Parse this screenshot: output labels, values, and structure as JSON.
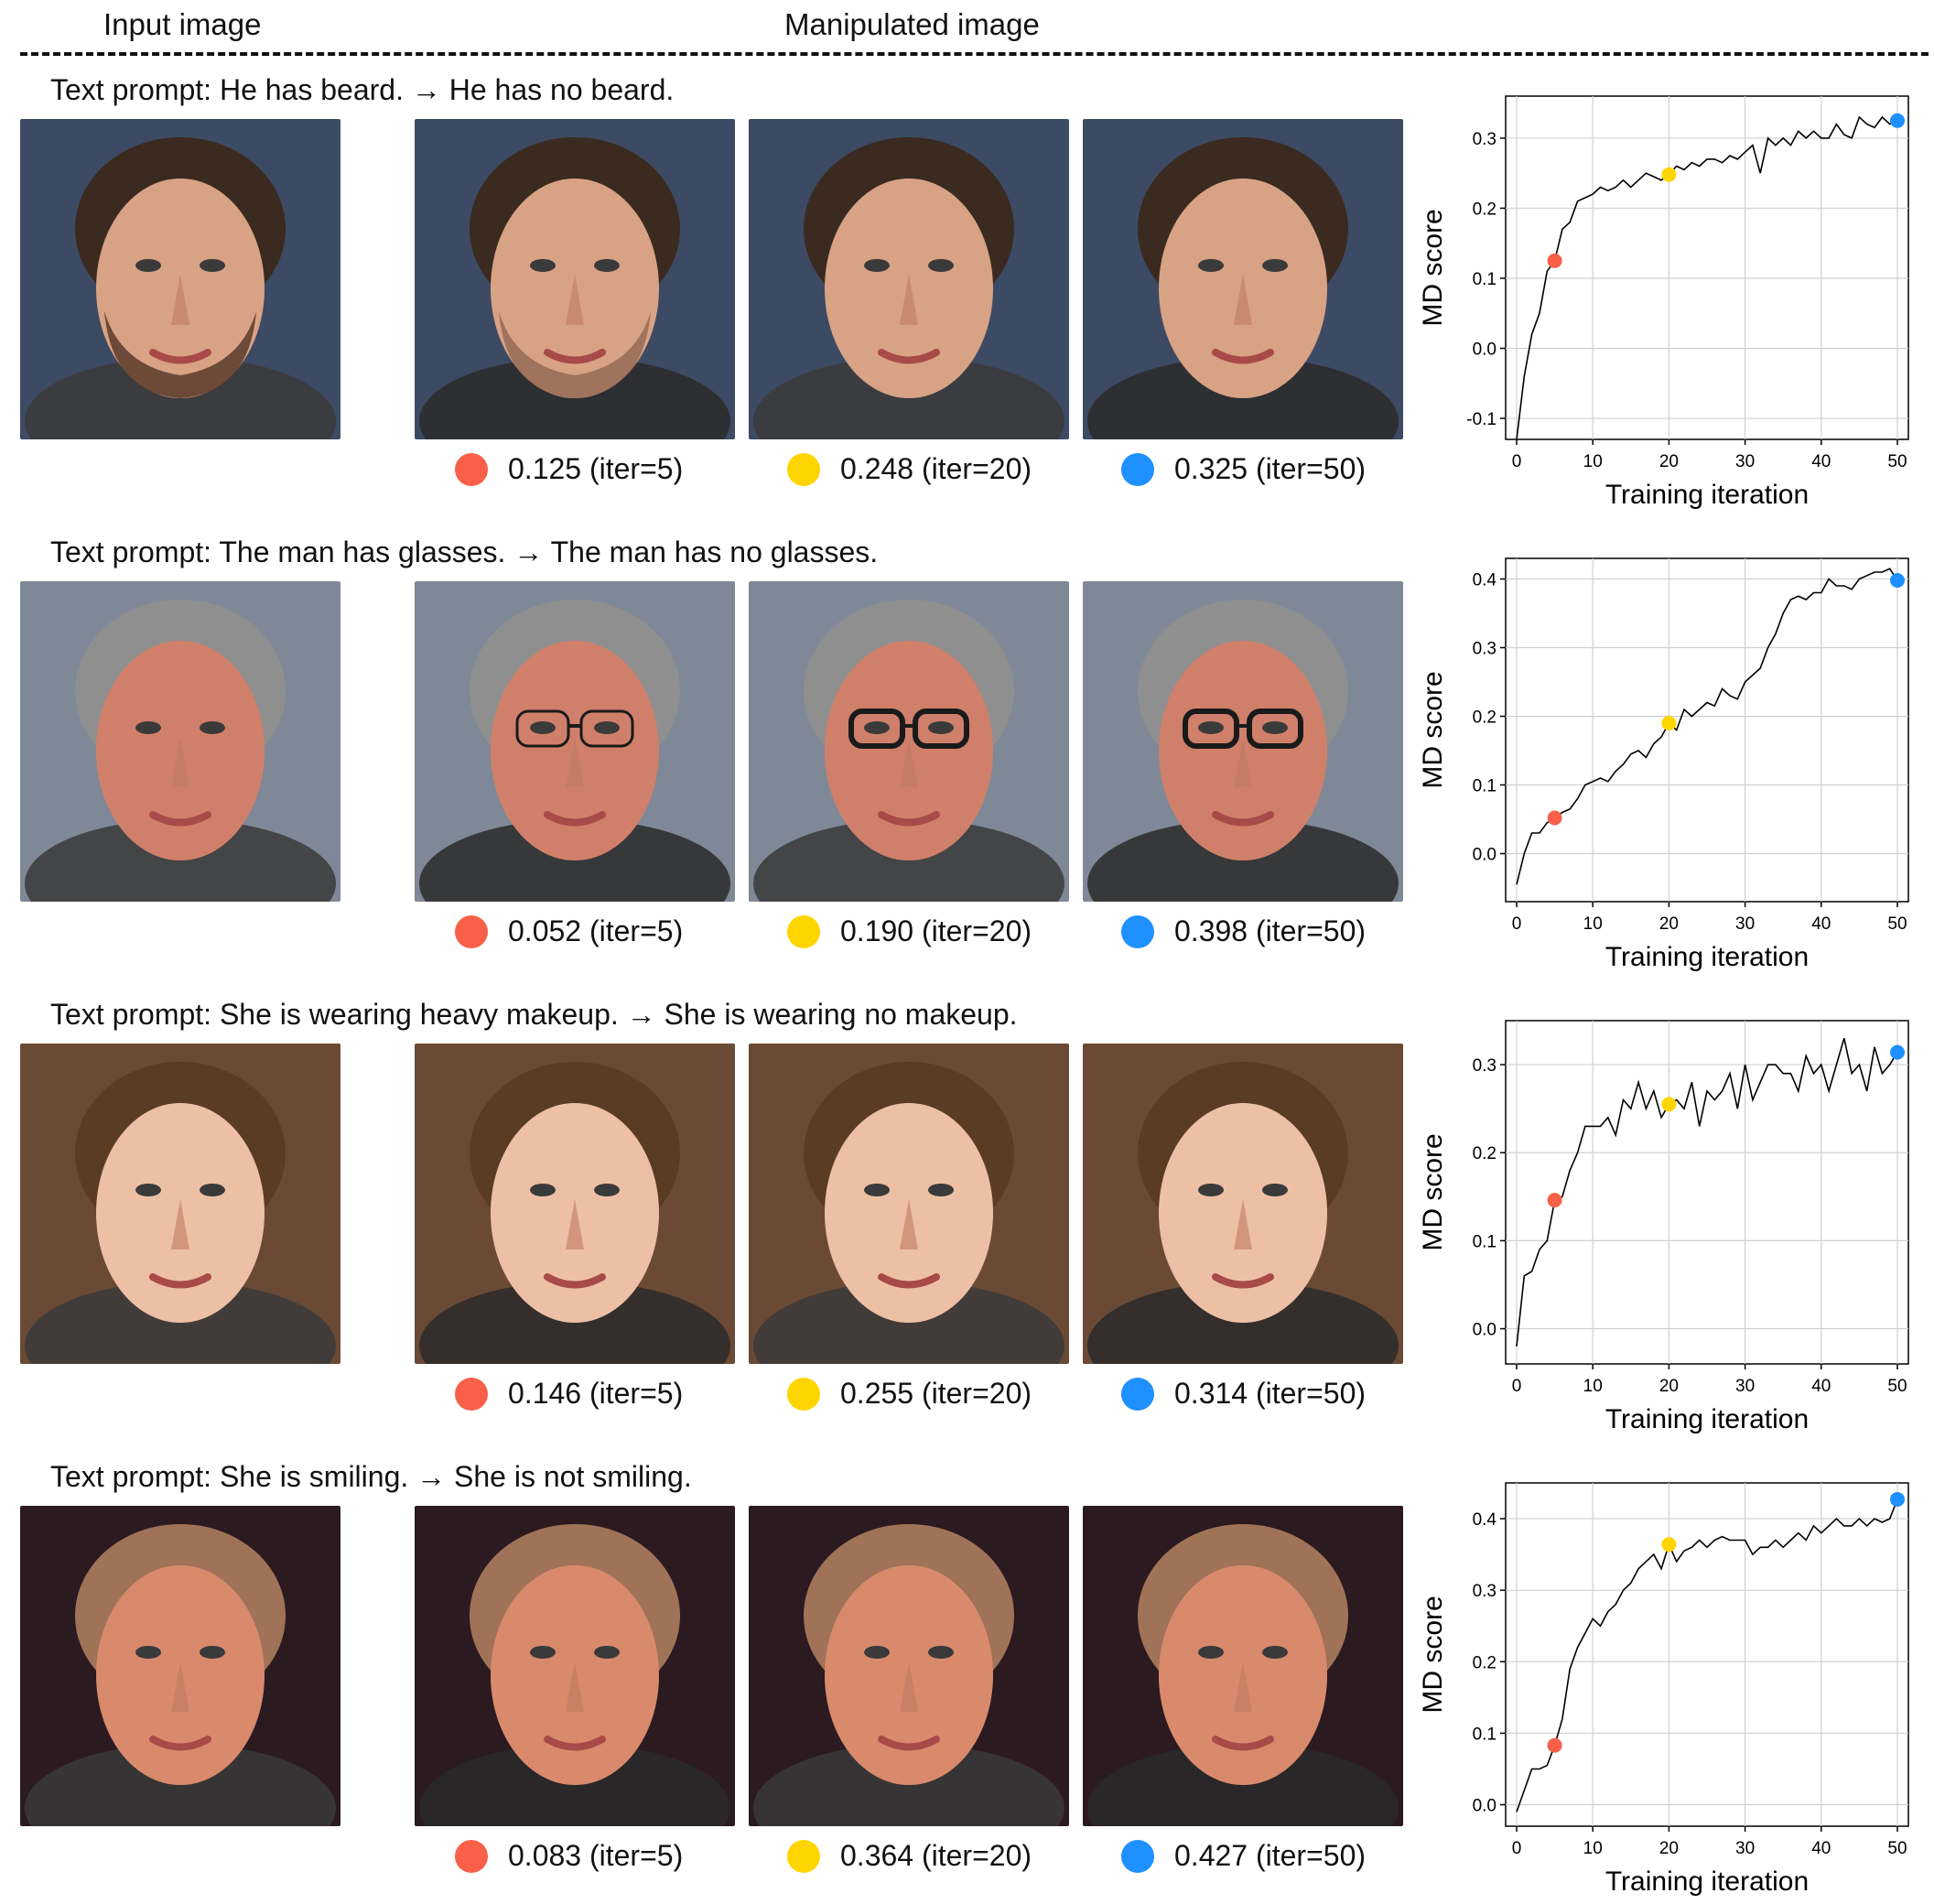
{
  "header": {
    "input_label": "Input image",
    "manipulated_label": "Manipulated image"
  },
  "colors": {
    "iter5": "#F8604A",
    "iter20": "#FFD500",
    "iter50": "#1E90FF",
    "line": "#000000",
    "grid": "#d0d0d0"
  },
  "rows": [
    {
      "prompt": "Text prompt: He has beard. → He has no beard.",
      "images": [
        "input-face-bearded-man",
        "manipulated-face-iter5",
        "manipulated-face-iter20",
        "manipulated-face-iter50"
      ],
      "captions": [
        "0.125 (iter=5)",
        "0.248 (iter=20)",
        "0.325 (iter=50)"
      ]
    },
    {
      "prompt": "Text prompt: The man has glasses. → The man has no glasses.",
      "images": [
        "input-face-older-man",
        "manipulated-face-iter5",
        "manipulated-face-iter20",
        "manipulated-face-iter50"
      ],
      "captions": [
        "0.052 (iter=5)",
        "0.190 (iter=20)",
        "0.398 (iter=50)"
      ]
    },
    {
      "prompt": "Text prompt: She is wearing heavy makeup. → She is wearing no makeup.",
      "images": [
        "input-face-young-woman",
        "manipulated-face-iter5",
        "manipulated-face-iter20",
        "manipulated-face-iter50"
      ],
      "captions": [
        "0.146 (iter=5)",
        "0.255 (iter=20)",
        "0.314 (iter=50)"
      ]
    },
    {
      "prompt": "Text prompt: She is smiling. → She is not smiling.",
      "images": [
        "input-face-smiling-woman",
        "manipulated-face-iter5",
        "manipulated-face-iter20",
        "manipulated-face-iter50"
      ],
      "captions": [
        "0.083 (iter=5)",
        "0.364 (iter=20)",
        "0.427 (iter=50)"
      ]
    }
  ],
  "chart_data": [
    {
      "type": "line",
      "xlabel": "Training iteration",
      "ylabel": "MD score",
      "xlim": [
        0,
        50
      ],
      "ylim": [
        -0.13,
        0.36
      ],
      "xticks": [
        "0",
        "10",
        "20",
        "30",
        "40",
        "50"
      ],
      "yticks": [
        "-0.1",
        "0.0",
        "0.1",
        "0.2",
        "0.3"
      ],
      "ytick_values": [
        -0.1,
        0.0,
        0.1,
        0.2,
        0.3
      ],
      "grid": true,
      "x": [
        0,
        1,
        2,
        3,
        4,
        5,
        6,
        7,
        8,
        9,
        10,
        11,
        12,
        13,
        14,
        15,
        16,
        17,
        18,
        19,
        20,
        21,
        22,
        23,
        24,
        25,
        26,
        27,
        28,
        29,
        30,
        31,
        32,
        33,
        34,
        35,
        36,
        37,
        38,
        39,
        40,
        41,
        42,
        43,
        44,
        45,
        46,
        47,
        48,
        49,
        50
      ],
      "y": [
        -0.13,
        -0.04,
        0.02,
        0.05,
        0.11,
        0.125,
        0.17,
        0.18,
        0.21,
        0.215,
        0.22,
        0.23,
        0.225,
        0.23,
        0.24,
        0.23,
        0.24,
        0.25,
        0.245,
        0.24,
        0.248,
        0.26,
        0.255,
        0.265,
        0.26,
        0.27,
        0.27,
        0.265,
        0.275,
        0.27,
        0.28,
        0.29,
        0.25,
        0.3,
        0.29,
        0.3,
        0.29,
        0.31,
        0.3,
        0.31,
        0.3,
        0.3,
        0.32,
        0.305,
        0.3,
        0.33,
        0.32,
        0.315,
        0.33,
        0.32,
        0.325
      ],
      "markers": [
        {
          "x": 5,
          "y": 0.125,
          "color_key": "iter5"
        },
        {
          "x": 20,
          "y": 0.248,
          "color_key": "iter20"
        },
        {
          "x": 50,
          "y": 0.325,
          "color_key": "iter50"
        }
      ]
    },
    {
      "type": "line",
      "xlabel": "Training iteration",
      "ylabel": "MD score",
      "xlim": [
        0,
        50
      ],
      "ylim": [
        -0.07,
        0.43
      ],
      "xticks": [
        "0",
        "10",
        "20",
        "30",
        "40",
        "50"
      ],
      "yticks": [
        "0.0",
        "0.1",
        "0.2",
        "0.3",
        "0.4"
      ],
      "ytick_values": [
        0.0,
        0.1,
        0.2,
        0.3,
        0.4
      ],
      "grid": true,
      "x": [
        0,
        1,
        2,
        3,
        4,
        5,
        6,
        7,
        8,
        9,
        10,
        11,
        12,
        13,
        14,
        15,
        16,
        17,
        18,
        19,
        20,
        21,
        22,
        23,
        24,
        25,
        26,
        27,
        28,
        29,
        30,
        31,
        32,
        33,
        34,
        35,
        36,
        37,
        38,
        39,
        40,
        41,
        42,
        43,
        44,
        45,
        46,
        47,
        48,
        49,
        50
      ],
      "y": [
        -0.045,
        0.0,
        0.03,
        0.03,
        0.045,
        0.052,
        0.06,
        0.065,
        0.08,
        0.1,
        0.105,
        0.11,
        0.105,
        0.12,
        0.13,
        0.145,
        0.15,
        0.14,
        0.16,
        0.17,
        0.19,
        0.18,
        0.21,
        0.2,
        0.21,
        0.22,
        0.215,
        0.24,
        0.23,
        0.225,
        0.25,
        0.26,
        0.27,
        0.3,
        0.32,
        0.35,
        0.37,
        0.375,
        0.37,
        0.38,
        0.38,
        0.4,
        0.39,
        0.39,
        0.385,
        0.4,
        0.405,
        0.41,
        0.41,
        0.415,
        0.398
      ],
      "markers": [
        {
          "x": 5,
          "y": 0.052,
          "color_key": "iter5"
        },
        {
          "x": 20,
          "y": 0.19,
          "color_key": "iter20"
        },
        {
          "x": 50,
          "y": 0.398,
          "color_key": "iter50"
        }
      ]
    },
    {
      "type": "line",
      "xlabel": "Training iteration",
      "ylabel": "MD score",
      "xlim": [
        0,
        50
      ],
      "ylim": [
        -0.04,
        0.35
      ],
      "xticks": [
        "0",
        "10",
        "20",
        "30",
        "40",
        "50"
      ],
      "yticks": [
        "0.0",
        "0.1",
        "0.2",
        "0.3"
      ],
      "ytick_values": [
        0.0,
        0.1,
        0.2,
        0.3
      ],
      "grid": true,
      "x": [
        0,
        1,
        2,
        3,
        4,
        5,
        6,
        7,
        8,
        9,
        10,
        11,
        12,
        13,
        14,
        15,
        16,
        17,
        18,
        19,
        20,
        21,
        22,
        23,
        24,
        25,
        26,
        27,
        28,
        29,
        30,
        31,
        32,
        33,
        34,
        35,
        36,
        37,
        38,
        39,
        40,
        41,
        42,
        43,
        44,
        45,
        46,
        47,
        48,
        49,
        50
      ],
      "y": [
        -0.02,
        0.06,
        0.065,
        0.09,
        0.1,
        0.146,
        0.15,
        0.18,
        0.2,
        0.23,
        0.23,
        0.23,
        0.24,
        0.22,
        0.26,
        0.25,
        0.28,
        0.25,
        0.27,
        0.24,
        0.255,
        0.26,
        0.25,
        0.28,
        0.23,
        0.27,
        0.26,
        0.27,
        0.29,
        0.25,
        0.3,
        0.26,
        0.28,
        0.3,
        0.3,
        0.29,
        0.29,
        0.27,
        0.31,
        0.29,
        0.3,
        0.27,
        0.3,
        0.33,
        0.29,
        0.3,
        0.27,
        0.32,
        0.29,
        0.3,
        0.314
      ],
      "markers": [
        {
          "x": 5,
          "y": 0.146,
          "color_key": "iter5"
        },
        {
          "x": 20,
          "y": 0.255,
          "color_key": "iter20"
        },
        {
          "x": 50,
          "y": 0.314,
          "color_key": "iter50"
        }
      ]
    },
    {
      "type": "line",
      "xlabel": "Training iteration",
      "ylabel": "MD score",
      "xlim": [
        0,
        50
      ],
      "ylim": [
        -0.03,
        0.45
      ],
      "xticks": [
        "0",
        "10",
        "20",
        "30",
        "40",
        "50"
      ],
      "yticks": [
        "0.0",
        "0.1",
        "0.2",
        "0.3",
        "0.4"
      ],
      "ytick_values": [
        0.0,
        0.1,
        0.2,
        0.3,
        0.4
      ],
      "grid": true,
      "x": [
        0,
        1,
        2,
        3,
        4,
        5,
        6,
        7,
        8,
        9,
        10,
        11,
        12,
        13,
        14,
        15,
        16,
        17,
        18,
        19,
        20,
        21,
        22,
        23,
        24,
        25,
        26,
        27,
        28,
        29,
        30,
        31,
        32,
        33,
        34,
        35,
        36,
        37,
        38,
        39,
        40,
        41,
        42,
        43,
        44,
        45,
        46,
        47,
        48,
        49,
        50
      ],
      "y": [
        -0.01,
        0.02,
        0.05,
        0.05,
        0.055,
        0.083,
        0.12,
        0.19,
        0.22,
        0.24,
        0.26,
        0.25,
        0.27,
        0.28,
        0.3,
        0.31,
        0.33,
        0.34,
        0.35,
        0.33,
        0.364,
        0.34,
        0.355,
        0.36,
        0.37,
        0.36,
        0.37,
        0.375,
        0.37,
        0.37,
        0.37,
        0.35,
        0.36,
        0.36,
        0.37,
        0.36,
        0.37,
        0.38,
        0.37,
        0.39,
        0.38,
        0.39,
        0.4,
        0.39,
        0.39,
        0.4,
        0.39,
        0.4,
        0.395,
        0.4,
        0.427
      ],
      "markers": [
        {
          "x": 5,
          "y": 0.083,
          "color_key": "iter5"
        },
        {
          "x": 20,
          "y": 0.364,
          "color_key": "iter20"
        },
        {
          "x": 50,
          "y": 0.427,
          "color_key": "iter50"
        }
      ]
    }
  ]
}
